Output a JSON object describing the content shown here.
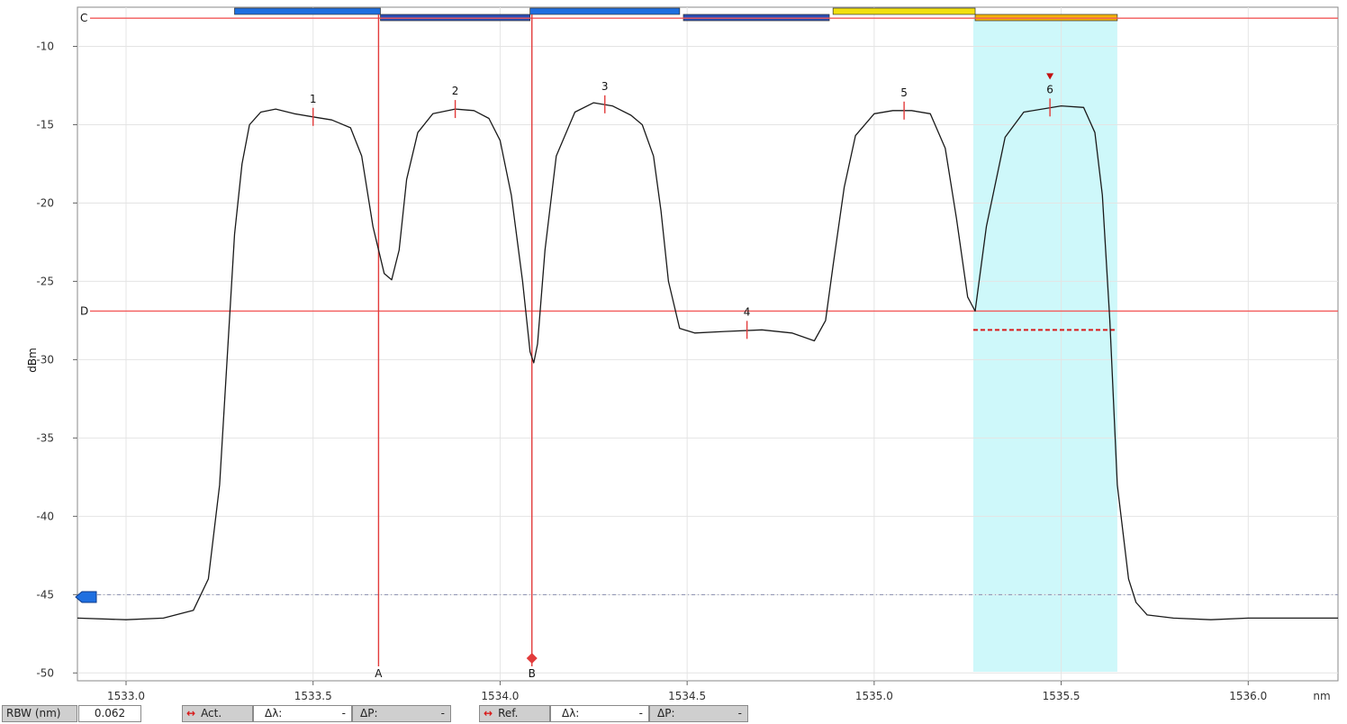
{
  "chart_data": {
    "type": "line",
    "title": "",
    "xlabel": "nm",
    "ylabel": "dBm",
    "xlim": [
      1532.87,
      1536.24
    ],
    "ylim": [
      -50.5,
      -7.5
    ],
    "x_ticks": [
      1533.0,
      1533.5,
      1534.0,
      1534.5,
      1535.0,
      1535.5,
      1536.0
    ],
    "x_tick_labels": [
      "1533.0",
      "1533.5",
      "1534.0",
      "1534.5",
      "1535.0",
      "1535.5",
      "1536.0"
    ],
    "y_ticks": [
      -10,
      -15,
      -20,
      -25,
      -30,
      -35,
      -40,
      -45,
      -50
    ],
    "y_tick_labels": [
      "-10",
      "-15",
      "-20",
      "-25",
      "-30",
      "-35",
      "-40",
      "-45",
      "-50"
    ],
    "grid": true,
    "series": [
      {
        "color": "#1a1a1a",
        "x": [
          1532.87,
          1533.0,
          1533.1,
          1533.18,
          1533.22,
          1533.25,
          1533.27,
          1533.29,
          1533.31,
          1533.33,
          1533.36,
          1533.4,
          1533.45,
          1533.5,
          1533.55,
          1533.6,
          1533.63,
          1533.66,
          1533.69,
          1533.71,
          1533.73,
          1533.75,
          1533.78,
          1533.82,
          1533.88,
          1533.93,
          1533.97,
          1534.0,
          1534.03,
          1534.06,
          1534.08,
          1534.09,
          1534.1,
          1534.12,
          1534.15,
          1534.2,
          1534.25,
          1534.3,
          1534.35,
          1534.38,
          1534.41,
          1534.43,
          1534.45,
          1534.48,
          1534.52,
          1534.6,
          1534.7,
          1534.78,
          1534.84,
          1534.87,
          1534.89,
          1534.92,
          1534.95,
          1535.0,
          1535.05,
          1535.1,
          1535.15,
          1535.19,
          1535.22,
          1535.25,
          1535.27,
          1535.3,
          1535.35,
          1535.4,
          1535.5,
          1535.56,
          1535.59,
          1535.61,
          1535.63,
          1535.65,
          1535.68,
          1535.7,
          1535.73,
          1535.8,
          1535.9,
          1536.0,
          1536.1,
          1536.24
        ],
        "y": [
          -46.5,
          -46.6,
          -46.5,
          -46.0,
          -44.0,
          -38.0,
          -30.0,
          -22.0,
          -17.5,
          -15.0,
          -14.2,
          -14.0,
          -14.3,
          -14.5,
          -14.7,
          -15.2,
          -17.0,
          -21.5,
          -24.5,
          -24.9,
          -23.0,
          -18.5,
          -15.5,
          -14.3,
          -14.0,
          -14.1,
          -14.6,
          -16.0,
          -19.5,
          -25.0,
          -29.5,
          -30.2,
          -29.0,
          -23.0,
          -17.0,
          -14.2,
          -13.6,
          -13.8,
          -14.4,
          -15.0,
          -17.0,
          -20.5,
          -25.0,
          -28.0,
          -28.3,
          -28.2,
          -28.1,
          -28.3,
          -28.8,
          -27.5,
          -24.0,
          -19.0,
          -15.7,
          -14.3,
          -14.1,
          -14.1,
          -14.3,
          -16.5,
          -21.0,
          -26.0,
          -26.9,
          -21.5,
          -15.8,
          -14.2,
          -13.8,
          -13.9,
          -15.5,
          -19.5,
          -27.5,
          -38.0,
          -44.0,
          -45.5,
          -46.3,
          -46.5,
          -46.6,
          -46.5,
          -46.5,
          -46.5
        ]
      }
    ],
    "markers": [
      {
        "label": "1",
        "x": 1533.5,
        "y": -14.5
      },
      {
        "label": "2",
        "x": 1533.88,
        "y": -14.0
      },
      {
        "label": "3",
        "x": 1534.28,
        "y": -13.7
      },
      {
        "label": "4",
        "x": 1534.66,
        "y": -28.1
      },
      {
        "label": "5",
        "x": 1535.08,
        "y": -14.1
      },
      {
        "label": "6",
        "x": 1535.47,
        "y": -13.9
      }
    ],
    "h_lines": [
      {
        "label": "C",
        "y": -8.2,
        "color": "#f25a5a"
      },
      {
        "label": "D",
        "y": -26.9,
        "color": "#f25a5a"
      }
    ],
    "v_lines": [
      {
        "label": "A",
        "x": 1533.675,
        "color": "#e23b3b"
      },
      {
        "label": "B",
        "x": 1534.085,
        "color": "#e23b3b"
      }
    ],
    "threshold_line": {
      "y": -45.0,
      "color": "#8a8fb0"
    },
    "highlight_band": {
      "x0": 1535.265,
      "x1": 1535.65,
      "color": "#bdf6f8"
    },
    "ref_dashed_line": {
      "x0": 1535.265,
      "x1": 1535.65,
      "y": -28.1,
      "color": "#d81a1a"
    },
    "channel_bars": [
      {
        "x0": 1533.29,
        "x1": 1533.68,
        "row": 0,
        "color": "#1f6fe0"
      },
      {
        "x0": 1533.68,
        "x1": 1534.08,
        "row": 1,
        "color": "#2a4db3"
      },
      {
        "x0": 1534.08,
        "x1": 1534.48,
        "row": 0,
        "color": "#1f6fe0"
      },
      {
        "x0": 1534.49,
        "x1": 1534.88,
        "row": 1,
        "color": "#2a4db3"
      },
      {
        "x0": 1534.89,
        "x1": 1535.27,
        "row": 0,
        "color": "#f2e010"
      },
      {
        "x0": 1535.27,
        "x1": 1535.65,
        "row": 1,
        "color": "#f2b20a"
      }
    ]
  },
  "footer": {
    "rbw_label": "RBW (nm)",
    "rbw_value": "0.062",
    "act_label": "Act.",
    "ref_label": "Ref.",
    "dlambda_label": "Δλ:",
    "dp_label": "ΔP:",
    "dash": "-"
  }
}
